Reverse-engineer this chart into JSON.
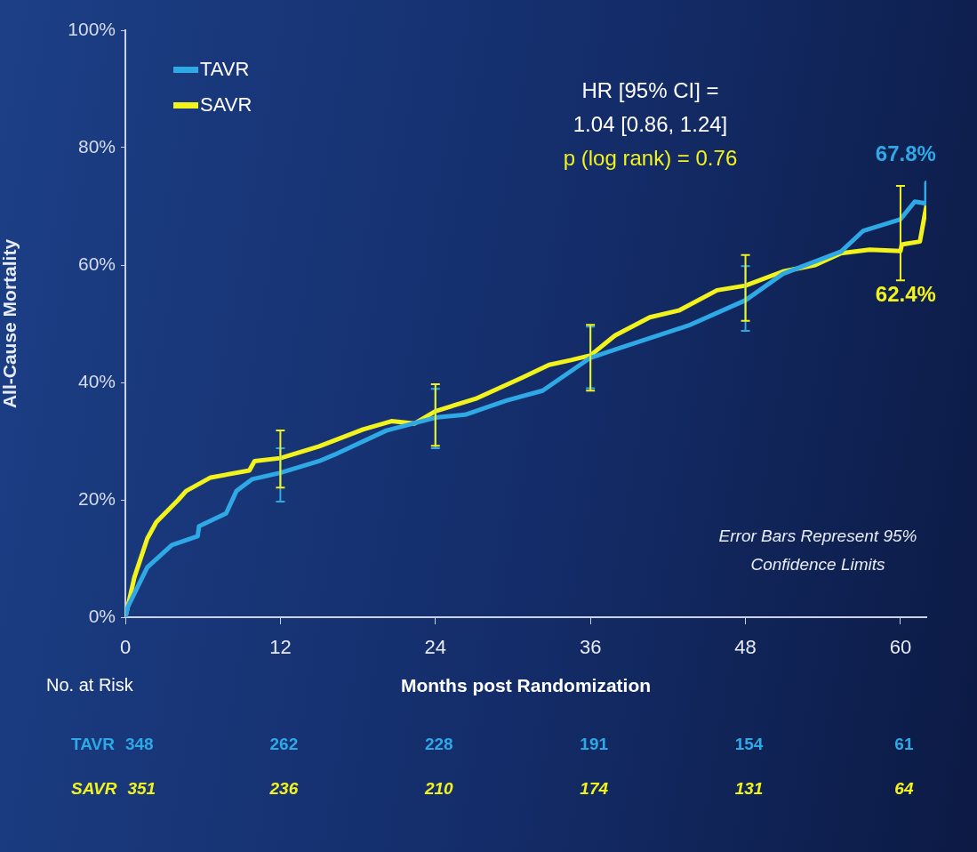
{
  "chart_data": {
    "type": "line",
    "ylabel": "All-Cause Mortality",
    "xlabel": "Months post Randomization",
    "xlim": [
      0,
      62
    ],
    "xticks": [
      0,
      12,
      24,
      36,
      48,
      60
    ],
    "ylim": [
      0,
      100
    ],
    "yticks": [
      {
        "value": 0,
        "label": "0%"
      },
      {
        "value": 20,
        "label": "20%"
      },
      {
        "value": 40,
        "label": "40%"
      },
      {
        "value": 60,
        "label": "60%"
      },
      {
        "value": 80,
        "label": "80%"
      },
      {
        "value": 100,
        "label": "100%"
      }
    ],
    "legend": "top left",
    "marker": "none",
    "line_style": "solid",
    "series": [
      {
        "name": "TAVR",
        "color": "#2fa8e6",
        "x": [
          0,
          0.2,
          1.7,
          3.6,
          5.6,
          5.7,
          7.8,
          8.6,
          9.8,
          12,
          15,
          16.2,
          20.2,
          24,
          26.3,
          29.5,
          32.3,
          36,
          38.2,
          43.6,
          48,
          50.9,
          55.4,
          57.1,
          60,
          61.1,
          62,
          62
        ],
        "values": [
          0,
          1.8,
          8.5,
          12.3,
          13.8,
          15.5,
          17.7,
          21.5,
          23.5,
          24.6,
          26.6,
          27.7,
          31.8,
          34,
          34.5,
          36.9,
          38.6,
          44.2,
          45.8,
          49.7,
          54,
          58.5,
          62.3,
          65.8,
          67.8,
          70.8,
          70.5,
          74
        ],
        "errors": [
          null,
          null,
          null,
          null,
          null,
          null,
          null,
          null,
          null,
          [
            19.7,
            28.8
          ],
          null,
          null,
          null,
          [
            28.8,
            38.9
          ],
          null,
          null,
          null,
          [
            39,
            49.5
          ],
          null,
          null,
          [
            48.8,
            59.8
          ],
          null,
          null,
          null,
          null,
          null,
          null,
          null
        ]
      },
      {
        "name": "SAVR",
        "color": "#f2f21c",
        "x": [
          0,
          0.7,
          1.7,
          2.4,
          4.1,
          4.7,
          6.6,
          9.6,
          10,
          12,
          15,
          18.4,
          20.6,
          22.4,
          24,
          27.1,
          30.7,
          32.8,
          34.5,
          36,
          37.9,
          40.6,
          42.9,
          45.8,
          48,
          50.9,
          53.4,
          55.4,
          57.6,
          60,
          60.1,
          61.5,
          62
        ],
        "values": [
          0,
          6.8,
          13.4,
          16.2,
          20,
          21.5,
          23.8,
          25,
          26.6,
          27.1,
          29.1,
          32,
          33.4,
          33,
          35.1,
          37.2,
          40.8,
          43,
          43.8,
          44.6,
          48,
          51.1,
          52.3,
          55.7,
          56.5,
          58.9,
          60,
          62,
          62.6,
          62.4,
          63.5,
          64,
          70
        ],
        "errors": [
          null,
          null,
          null,
          null,
          null,
          null,
          null,
          null,
          null,
          [
            22.1,
            31.8
          ],
          null,
          null,
          null,
          null,
          [
            29.2,
            39.7
          ],
          null,
          null,
          null,
          null,
          [
            38.6,
            49.8
          ],
          null,
          null,
          null,
          null,
          [
            50.5,
            61.7
          ],
          null,
          null,
          null,
          null,
          [
            57.4,
            73.5
          ],
          null,
          null,
          null
        ]
      }
    ],
    "annotations": [
      "HR [95% CI] =",
      "1.04 [0.86, 1.24]",
      "p (log rank) = 0.76",
      "Error Bars Represent 95% Confidence Limits",
      "No. at Risk",
      {
        "text": "67.8%",
        "x": 60,
        "y": 67.8
      },
      {
        "text": "62.4%",
        "x": 60,
        "y": 62.4
      },
      "348",
      "262",
      "228",
      "191",
      "154",
      "61",
      "351",
      "236",
      "210",
      "174",
      "131",
      "64"
    ]
  }
}
